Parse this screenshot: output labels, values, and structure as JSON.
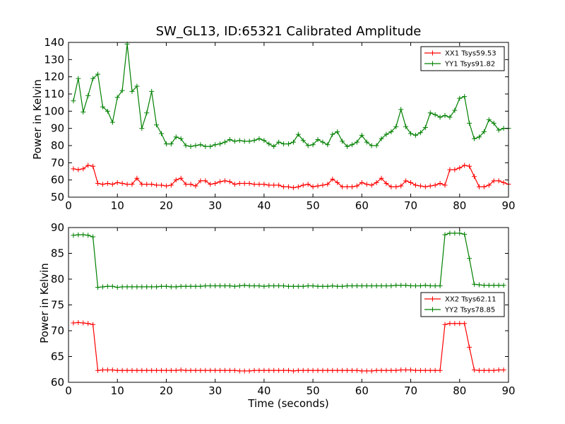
{
  "figure": {
    "title": "SW_GL13, ID:65321 Calibrated Amplitude",
    "xlabel": "Time (seconds)"
  },
  "colors": {
    "red": "#ff0000",
    "green": "#008000",
    "axis": "#000000"
  },
  "chart_data": [
    {
      "type": "line",
      "ylabel": "Power in Kelvin",
      "xlim": [
        0,
        90
      ],
      "ylim": [
        50,
        140
      ],
      "x_ticks": [
        0,
        10,
        20,
        30,
        40,
        50,
        60,
        70,
        80,
        90
      ],
      "y_ticks": [
        50,
        60,
        70,
        80,
        90,
        100,
        110,
        120,
        130,
        140
      ],
      "grid": false,
      "legend_position": "top-right",
      "series": [
        {
          "name": "XX1 Tsys59.53",
          "color": "#ff0000",
          "x": [
            1,
            2,
            3,
            4,
            5,
            6,
            7,
            8,
            9,
            10,
            11,
            12,
            13,
            14,
            15,
            16,
            17,
            18,
            19,
            20,
            21,
            22,
            23,
            24,
            25,
            26,
            27,
            28,
            29,
            30,
            31,
            32,
            33,
            34,
            35,
            36,
            37,
            38,
            39,
            40,
            41,
            42,
            43,
            44,
            45,
            46,
            47,
            48,
            49,
            50,
            51,
            52,
            53,
            54,
            55,
            56,
            57,
            58,
            59,
            60,
            61,
            62,
            63,
            64,
            65,
            66,
            67,
            68,
            69,
            70,
            71,
            72,
            73,
            74,
            75,
            76,
            77,
            78,
            79,
            80,
            81,
            82,
            83,
            84,
            85,
            86,
            87,
            88,
            89,
            90
          ],
          "y": [
            66.5,
            66,
            66.5,
            68.5,
            68,
            58,
            57.5,
            58,
            57.5,
            58.5,
            58,
            57.5,
            57.5,
            61,
            57.5,
            57.5,
            57.5,
            57,
            57,
            56.5,
            57,
            60,
            61,
            57.5,
            57.5,
            56.5,
            59.5,
            59.5,
            57.5,
            58,
            59,
            59.5,
            59,
            57.5,
            58,
            58,
            58,
            57.5,
            57.5,
            57.5,
            57,
            57,
            57,
            56,
            56,
            55.5,
            56,
            57,
            57.5,
            56,
            56.5,
            57,
            57.5,
            60.5,
            58.5,
            56,
            56,
            56,
            56.5,
            58.5,
            57.5,
            57,
            58.5,
            61,
            58,
            56,
            56,
            56.5,
            59.5,
            58.5,
            57,
            56.5,
            56,
            56.5,
            57,
            58,
            57,
            66,
            66,
            67,
            68.5,
            68,
            62,
            56,
            56,
            57,
            59.5,
            59.5,
            58.5,
            57.5
          ]
        },
        {
          "name": "YY1 Tsys91.82",
          "color": "#008000",
          "x": [
            1,
            2,
            3,
            4,
            5,
            6,
            7,
            8,
            9,
            10,
            11,
            12,
            13,
            14,
            15,
            16,
            17,
            18,
            19,
            20,
            21,
            22,
            23,
            24,
            25,
            26,
            27,
            28,
            29,
            30,
            31,
            32,
            33,
            34,
            35,
            36,
            37,
            38,
            39,
            40,
            41,
            42,
            43,
            44,
            45,
            46,
            47,
            48,
            49,
            50,
            51,
            52,
            53,
            54,
            55,
            56,
            57,
            58,
            59,
            60,
            61,
            62,
            63,
            64,
            65,
            66,
            67,
            68,
            69,
            70,
            71,
            72,
            73,
            74,
            75,
            76,
            77,
            78,
            79,
            80,
            81,
            82,
            83,
            84,
            85,
            86,
            87,
            88,
            89,
            90
          ],
          "y": [
            106,
            119,
            99.5,
            109,
            119,
            121.5,
            102.5,
            100,
            93.5,
            108,
            112,
            139,
            111.5,
            114.5,
            90,
            99,
            111.5,
            92,
            87,
            81,
            81,
            85,
            84,
            80,
            79.5,
            80,
            80.5,
            79.5,
            79.5,
            80.5,
            81,
            82,
            83.5,
            82.5,
            83,
            82.5,
            82.5,
            83,
            84,
            83,
            81,
            79.5,
            82,
            81,
            81,
            82,
            86.5,
            83,
            80,
            80.5,
            83.5,
            82,
            80.5,
            86.5,
            88,
            82.5,
            79.5,
            80.5,
            82,
            86,
            82,
            80,
            80,
            84,
            86.5,
            88,
            91,
            101,
            91,
            87,
            86,
            87.5,
            90.5,
            99,
            98,
            96.5,
            97.5,
            96.5,
            100.5,
            107.5,
            108.5,
            93,
            84,
            85,
            88,
            95,
            93,
            89,
            90,
            90
          ]
        }
      ]
    },
    {
      "type": "line",
      "ylabel": "Power in Kelvin",
      "xlim": [
        0,
        90
      ],
      "ylim": [
        60,
        90
      ],
      "x_ticks": [
        0,
        10,
        20,
        30,
        40,
        50,
        60,
        70,
        80,
        90
      ],
      "y_ticks": [
        60,
        65,
        70,
        75,
        80,
        85,
        90
      ],
      "grid": false,
      "legend_position": "center-right",
      "series": [
        {
          "name": "XX2 Tsys62.11",
          "color": "#ff0000",
          "x": [
            1,
            2,
            3,
            4,
            5,
            6,
            7,
            8,
            9,
            10,
            11,
            12,
            13,
            14,
            15,
            16,
            17,
            18,
            19,
            20,
            21,
            22,
            23,
            24,
            25,
            26,
            27,
            28,
            29,
            30,
            31,
            32,
            33,
            34,
            35,
            36,
            37,
            38,
            39,
            40,
            41,
            42,
            43,
            44,
            45,
            46,
            47,
            48,
            49,
            50,
            51,
            52,
            53,
            54,
            55,
            56,
            57,
            58,
            59,
            60,
            61,
            62,
            63,
            64,
            65,
            66,
            67,
            68,
            69,
            70,
            71,
            72,
            73,
            74,
            75,
            76,
            77,
            78,
            79,
            80,
            81,
            82,
            83,
            84,
            85,
            86,
            87,
            88,
            89
          ],
          "y": [
            71.5,
            71.6,
            71.5,
            71.4,
            71.2,
            62.3,
            62.4,
            62.4,
            62.4,
            62.3,
            62.3,
            62.3,
            62.3,
            62.3,
            62.3,
            62.3,
            62.3,
            62.3,
            62.3,
            62.3,
            62.3,
            62.3,
            62.4,
            62.3,
            62.3,
            62.3,
            62.3,
            62.3,
            62.3,
            62.3,
            62.3,
            62.3,
            62.3,
            62.3,
            62.2,
            62.2,
            62.2,
            62.3,
            62.3,
            62.3,
            62.3,
            62.3,
            62.3,
            62.3,
            62.3,
            62.2,
            62.3,
            62.3,
            62.3,
            62.3,
            62.3,
            62.3,
            62.3,
            62.3,
            62.3,
            62.3,
            62.3,
            62.3,
            62.3,
            62.2,
            62.2,
            62.2,
            62.3,
            62.3,
            62.3,
            62.3,
            62.3,
            62.4,
            62.4,
            62.4,
            62.3,
            62.3,
            62.3,
            62.3,
            62.3,
            62.3,
            71.2,
            71.4,
            71.4,
            71.4,
            71.4,
            66.8,
            62.4,
            62.3,
            62.3,
            62.3,
            62.3,
            62.4,
            62.4
          ]
        },
        {
          "name": "YY2 Tsys78.85",
          "color": "#008000",
          "x": [
            1,
            2,
            3,
            4,
            5,
            6,
            7,
            8,
            9,
            10,
            11,
            12,
            13,
            14,
            15,
            16,
            17,
            18,
            19,
            20,
            21,
            22,
            23,
            24,
            25,
            26,
            27,
            28,
            29,
            30,
            31,
            32,
            33,
            34,
            35,
            36,
            37,
            38,
            39,
            40,
            41,
            42,
            43,
            44,
            45,
            46,
            47,
            48,
            49,
            50,
            51,
            52,
            53,
            54,
            55,
            56,
            57,
            58,
            59,
            60,
            61,
            62,
            63,
            64,
            65,
            66,
            67,
            68,
            69,
            70,
            71,
            72,
            73,
            74,
            75,
            76,
            77,
            78,
            79,
            80,
            81,
            82,
            83,
            84,
            85,
            86,
            87,
            88,
            89
          ],
          "y": [
            88.5,
            88.6,
            88.6,
            88.5,
            88.2,
            78.4,
            78.5,
            78.6,
            78.6,
            78.4,
            78.5,
            78.5,
            78.5,
            78.5,
            78.5,
            78.5,
            78.5,
            78.5,
            78.6,
            78.6,
            78.5,
            78.5,
            78.6,
            78.6,
            78.6,
            78.6,
            78.6,
            78.7,
            78.7,
            78.7,
            78.7,
            78.7,
            78.7,
            78.6,
            78.7,
            78.8,
            78.7,
            78.7,
            78.7,
            78.6,
            78.7,
            78.7,
            78.7,
            78.7,
            78.6,
            78.6,
            78.6,
            78.6,
            78.7,
            78.7,
            78.6,
            78.6,
            78.6,
            78.7,
            78.6,
            78.6,
            78.7,
            78.7,
            78.7,
            78.7,
            78.7,
            78.7,
            78.7,
            78.7,
            78.7,
            78.7,
            78.8,
            78.8,
            78.8,
            78.7,
            78.7,
            78.7,
            78.8,
            78.7,
            78.7,
            78.7,
            88.6,
            88.9,
            88.9,
            88.9,
            88.7,
            84,
            79,
            78.9,
            78.8,
            78.8,
            78.8,
            78.8,
            78.8
          ]
        }
      ]
    }
  ]
}
